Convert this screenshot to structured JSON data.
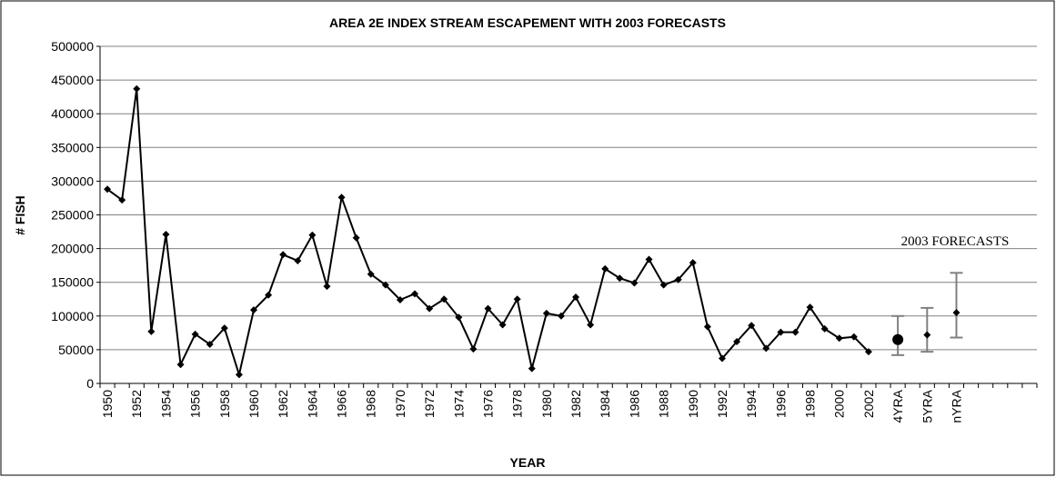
{
  "chart_data": {
    "type": "line",
    "title": "AREA 2E INDEX STREAM ESCAPEMENT WITH 2003 FORECASTS",
    "x_label": "YEAR",
    "y_label": "# FISH",
    "annotation": "2003 FORECASTS",
    "categories": [
      "1950",
      null,
      "1952",
      null,
      "1954",
      null,
      "1956",
      null,
      "1958",
      null,
      "1960",
      null,
      "1962",
      null,
      "1964",
      null,
      "1966",
      null,
      "1968",
      null,
      "1970",
      null,
      "1972",
      null,
      "1974",
      null,
      "1976",
      null,
      "1978",
      null,
      "1980",
      null,
      "1982",
      null,
      "1984",
      null,
      "1986",
      null,
      "1988",
      null,
      "1990",
      null,
      "1992",
      null,
      "1994",
      null,
      "1996",
      null,
      "1998",
      null,
      "2000",
      null,
      "2002",
      null,
      "4YRA",
      null,
      "5YRA",
      null,
      "nYRA",
      null,
      null,
      null,
      null,
      null
    ],
    "series": [
      {
        "color": "#000000",
        "marker": "diamond",
        "line": true,
        "values": [
          288000,
          272000,
          437000,
          77000,
          221000,
          28000,
          73000,
          58000,
          82000,
          13000,
          109000,
          131000,
          191000,
          182000,
          220000,
          144000,
          276000,
          216000,
          162000,
          146000,
          124000,
          133000,
          111000,
          125000,
          98000,
          51000,
          111000,
          87000,
          125000,
          22000,
          104000,
          100000,
          128000,
          87000,
          170000,
          156000,
          149000,
          184000,
          146000,
          154000,
          179000,
          84000,
          37000,
          62000,
          86000,
          52000,
          76000,
          76000,
          113000,
          81000,
          67000,
          69000,
          47000,
          null,
          null,
          null,
          null,
          null,
          null,
          null,
          null,
          null,
          null,
          null
        ]
      },
      {
        "color": "#000000",
        "marker": "circle",
        "line": false,
        "error_color": "#808080",
        "values": [
          null,
          null,
          null,
          null,
          null,
          null,
          null,
          null,
          null,
          null,
          null,
          null,
          null,
          null,
          null,
          null,
          null,
          null,
          null,
          null,
          null,
          null,
          null,
          null,
          null,
          null,
          null,
          null,
          null,
          null,
          null,
          null,
          null,
          null,
          null,
          null,
          null,
          null,
          null,
          null,
          null,
          null,
          null,
          null,
          null,
          null,
          null,
          null,
          null,
          null,
          null,
          null,
          null,
          null,
          65000,
          null,
          null,
          null,
          null,
          null,
          null,
          null,
          null,
          null
        ],
        "lower": [
          null,
          null,
          null,
          null,
          null,
          null,
          null,
          null,
          null,
          null,
          null,
          null,
          null,
          null,
          null,
          null,
          null,
          null,
          null,
          null,
          null,
          null,
          null,
          null,
          null,
          null,
          null,
          null,
          null,
          null,
          null,
          null,
          null,
          null,
          null,
          null,
          null,
          null,
          null,
          null,
          null,
          null,
          null,
          null,
          null,
          null,
          null,
          null,
          null,
          null,
          null,
          null,
          null,
          null,
          42000,
          null,
          null,
          null,
          null,
          null,
          null,
          null,
          null,
          null
        ],
        "upper": [
          null,
          null,
          null,
          null,
          null,
          null,
          null,
          null,
          null,
          null,
          null,
          null,
          null,
          null,
          null,
          null,
          null,
          null,
          null,
          null,
          null,
          null,
          null,
          null,
          null,
          null,
          null,
          null,
          null,
          null,
          null,
          null,
          null,
          null,
          null,
          null,
          null,
          null,
          null,
          null,
          null,
          null,
          null,
          null,
          null,
          null,
          null,
          null,
          null,
          null,
          null,
          null,
          null,
          null,
          100000,
          null,
          null,
          null,
          null,
          null,
          null,
          null,
          null,
          null
        ]
      },
      {
        "color": "#000000",
        "marker": "diamond",
        "line": false,
        "error_color": "#808080",
        "values": [
          null,
          null,
          null,
          null,
          null,
          null,
          null,
          null,
          null,
          null,
          null,
          null,
          null,
          null,
          null,
          null,
          null,
          null,
          null,
          null,
          null,
          null,
          null,
          null,
          null,
          null,
          null,
          null,
          null,
          null,
          null,
          null,
          null,
          null,
          null,
          null,
          null,
          null,
          null,
          null,
          null,
          null,
          null,
          null,
          null,
          null,
          null,
          null,
          null,
          null,
          null,
          null,
          null,
          null,
          null,
          null,
          72000,
          null,
          105000,
          null,
          null,
          null,
          null,
          null
        ],
        "lower": [
          null,
          null,
          null,
          null,
          null,
          null,
          null,
          null,
          null,
          null,
          null,
          null,
          null,
          null,
          null,
          null,
          null,
          null,
          null,
          null,
          null,
          null,
          null,
          null,
          null,
          null,
          null,
          null,
          null,
          null,
          null,
          null,
          null,
          null,
          null,
          null,
          null,
          null,
          null,
          null,
          null,
          null,
          null,
          null,
          null,
          null,
          null,
          null,
          null,
          null,
          null,
          null,
          null,
          null,
          null,
          null,
          47000,
          null,
          68000,
          null,
          null,
          null,
          null,
          null
        ],
        "upper": [
          null,
          null,
          null,
          null,
          null,
          null,
          null,
          null,
          null,
          null,
          null,
          null,
          null,
          null,
          null,
          null,
          null,
          null,
          null,
          null,
          null,
          null,
          null,
          null,
          null,
          null,
          null,
          null,
          null,
          null,
          null,
          null,
          null,
          null,
          null,
          null,
          null,
          null,
          null,
          null,
          null,
          null,
          null,
          null,
          null,
          null,
          null,
          null,
          null,
          null,
          null,
          null,
          null,
          null,
          null,
          null,
          112000,
          null,
          164000,
          null,
          null,
          null,
          null,
          null
        ]
      }
    ],
    "ylim": [
      0,
      500000
    ],
    "yticks": [
      0,
      50000,
      100000,
      150000,
      200000,
      250000,
      300000,
      350000,
      400000,
      450000,
      500000
    ],
    "grid": true
  }
}
